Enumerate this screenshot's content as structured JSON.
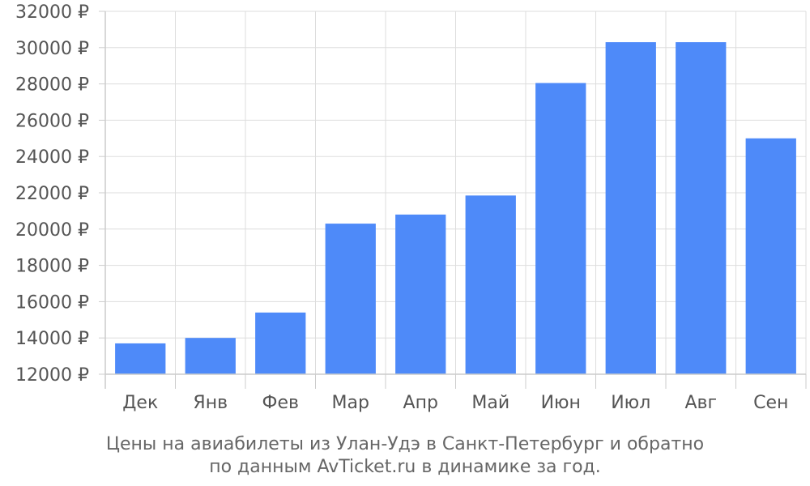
{
  "chart_data": {
    "type": "bar",
    "categories": [
      "Дек",
      "Янв",
      "Фев",
      "Мар",
      "Апр",
      "Май",
      "Июн",
      "Июл",
      "Авг",
      "Сен"
    ],
    "series": [
      {
        "values": [
          13700,
          14000,
          15400,
          20300,
          20800,
          21850,
          28050,
          30300,
          30300,
          25000
        ],
        "color": "#4e8af9"
      }
    ],
    "ylim": [
      12000,
      32000
    ],
    "yticks": [
      12000,
      14000,
      16000,
      18000,
      20000,
      22000,
      24000,
      26000,
      28000,
      30000,
      32000
    ],
    "ytick_suffix": " ₽",
    "grid": true,
    "caption_lines": [
      "Цены на авиабилеты из Улан-Удэ в Санкт-Петербург и обратно",
      "по данным AvTicket.ru в динамике за год."
    ]
  }
}
